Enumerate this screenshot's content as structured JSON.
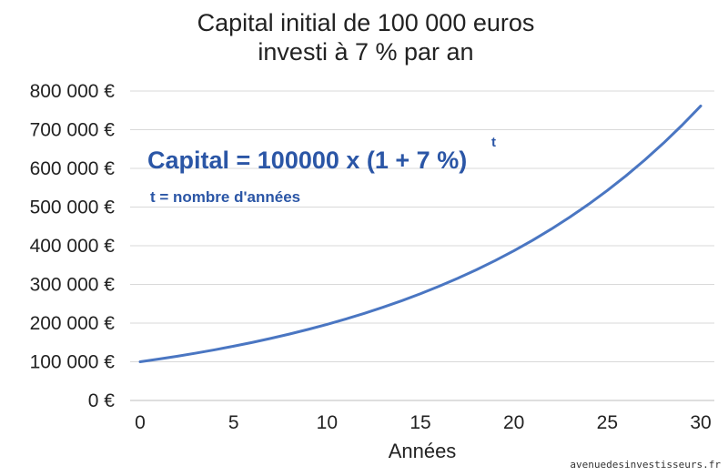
{
  "chart_data": {
    "type": "line",
    "title": [
      "Capital initial de 100 000 euros",
      "investi à 7 % par an"
    ],
    "xlabel": "Années",
    "ylabel": "",
    "xlim": [
      0,
      30
    ],
    "ylim": [
      0,
      800000
    ],
    "x_ticks": [
      "0",
      "5",
      "10",
      "15",
      "20",
      "25",
      "30"
    ],
    "x_tick_values": [
      0,
      5,
      10,
      15,
      20,
      25,
      30
    ],
    "y_ticks": [
      "0 €",
      "100 000 €",
      "200 000 €",
      "300 000 €",
      "400 000 €",
      "500 000 €",
      "600 000 €",
      "700 000 €",
      "800 000 €"
    ],
    "y_tick_values": [
      0,
      100000,
      200000,
      300000,
      400000,
      500000,
      600000,
      700000,
      800000
    ],
    "grid": "horizontal",
    "legend": "none",
    "series": [
      {
        "color": "#4a76c2",
        "x": [
          0,
          1,
          2,
          3,
          4,
          5,
          6,
          7,
          8,
          9,
          10,
          11,
          12,
          13,
          14,
          15,
          16,
          17,
          18,
          19,
          20,
          21,
          22,
          23,
          24,
          25,
          26,
          27,
          28,
          29,
          30
        ],
        "values": [
          100000,
          107000,
          114490,
          122504,
          131080,
          140255,
          150073,
          160578,
          171819,
          183846,
          196715,
          210485,
          225219,
          240985,
          257853,
          275903,
          295216,
          315882,
          337993,
          361653,
          386968,
          414056,
          443040,
          474053,
          507237,
          542743,
          580735,
          621387,
          664884,
          711426,
          761226
        ]
      }
    ],
    "annotations": {
      "formula": "Capital = 100000 x (1 + 7 %)",
      "formula_exponent": "t",
      "note": "t = nombre d'années"
    }
  },
  "watermark": "avenuedesinvestisseurs.fr"
}
